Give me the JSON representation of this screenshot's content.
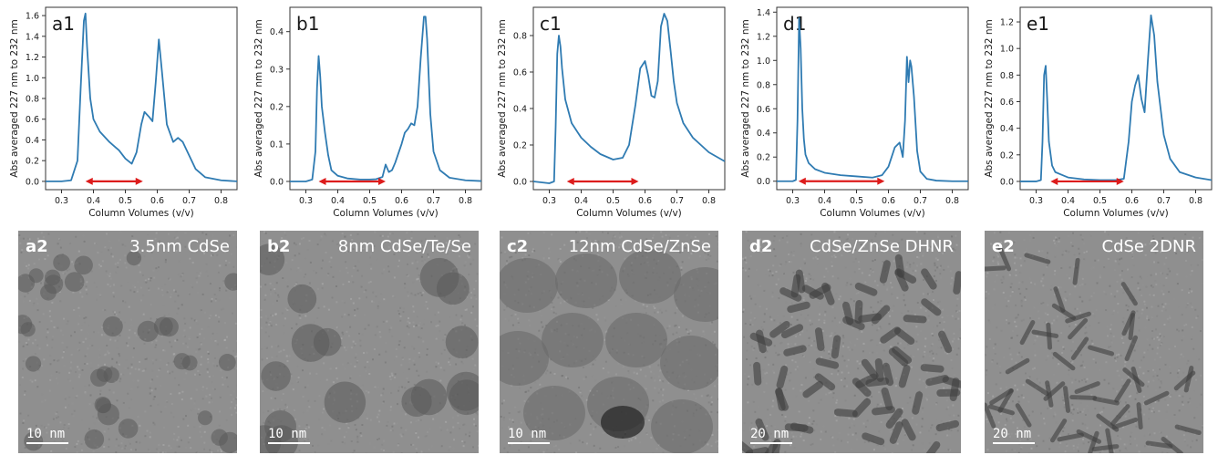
{
  "colors": {
    "line": "#2f7bb2",
    "arrow": "#dd1c1c",
    "axis": "#333333"
  },
  "chart_data": [
    {
      "type": "line",
      "label": "a1",
      "xlabel": "Column Volumes (v/v)",
      "ylabel": "Abs averaged 227 nm to 232 nm",
      "xlim": [
        0.25,
        0.85
      ],
      "ylim": [
        -0.08,
        1.68
      ],
      "xticks": [
        0.3,
        0.4,
        0.5,
        0.6,
        0.7,
        0.8
      ],
      "xtick_labels": [
        "0.3",
        "0.4",
        "0.5",
        "0.6",
        "0.7",
        "0.8"
      ],
      "yticks": [
        0.0,
        0.2,
        0.4,
        0.6,
        0.8,
        1.0,
        1.2,
        1.4,
        1.6
      ],
      "ytick_labels": [
        "0.0",
        "0.2",
        "0.4",
        "0.6",
        "0.8",
        "1.0",
        "1.2",
        "1.4",
        "1.6"
      ],
      "arrow": {
        "x": [
          0.375,
          0.555
        ],
        "y": 0.0
      },
      "series": [
        {
          "x": [
            0.25,
            0.3,
            0.33,
            0.35,
            0.36,
            0.37,
            0.375,
            0.38,
            0.39,
            0.4,
            0.42,
            0.45,
            0.48,
            0.5,
            0.52,
            0.535,
            0.55,
            0.56,
            0.575,
            0.585,
            0.595,
            0.605,
            0.615,
            0.63,
            0.65,
            0.665,
            0.68,
            0.7,
            0.72,
            0.75,
            0.8,
            0.85
          ],
          "y": [
            0.0,
            0.0,
            0.01,
            0.2,
            0.9,
            1.55,
            1.62,
            1.3,
            0.8,
            0.6,
            0.48,
            0.38,
            0.3,
            0.22,
            0.17,
            0.28,
            0.55,
            0.67,
            0.62,
            0.58,
            0.95,
            1.37,
            1.05,
            0.55,
            0.38,
            0.42,
            0.38,
            0.25,
            0.12,
            0.04,
            0.01,
            0.0
          ]
        }
      ]
    },
    {
      "type": "line",
      "label": "b1",
      "xlabel": "Column Volumes (v/v)",
      "ylabel": "Abs averaged 227 nm to 232 nm",
      "xlim": [
        0.25,
        0.85
      ],
      "ylim": [
        -0.022,
        0.465
      ],
      "xticks": [
        0.3,
        0.4,
        0.5,
        0.6,
        0.7,
        0.8
      ],
      "xtick_labels": [
        "0.3",
        "0.4",
        "0.5",
        "0.6",
        "0.7",
        "0.8"
      ],
      "yticks": [
        0.0,
        0.1,
        0.2,
        0.3,
        0.4
      ],
      "ytick_labels": [
        "0.0",
        "0.1",
        "0.2",
        "0.3",
        "0.4"
      ],
      "arrow": {
        "x": [
          0.34,
          0.55
        ],
        "y": 0.0
      },
      "series": [
        {
          "x": [
            0.25,
            0.3,
            0.32,
            0.33,
            0.335,
            0.34,
            0.345,
            0.35,
            0.36,
            0.37,
            0.38,
            0.4,
            0.43,
            0.47,
            0.5,
            0.52,
            0.54,
            0.55,
            0.56,
            0.57,
            0.58,
            0.6,
            0.61,
            0.62,
            0.63,
            0.64,
            0.65,
            0.66,
            0.67,
            0.675,
            0.68,
            0.69,
            0.7,
            0.72,
            0.75,
            0.8,
            0.85
          ],
          "y": [
            0.0,
            0.0,
            0.005,
            0.08,
            0.25,
            0.335,
            0.28,
            0.2,
            0.13,
            0.07,
            0.03,
            0.015,
            0.008,
            0.005,
            0.005,
            0.006,
            0.012,
            0.045,
            0.025,
            0.03,
            0.05,
            0.1,
            0.13,
            0.14,
            0.155,
            0.15,
            0.2,
            0.33,
            0.44,
            0.44,
            0.38,
            0.18,
            0.08,
            0.03,
            0.01,
            0.003,
            0.001
          ]
        }
      ]
    },
    {
      "type": "line",
      "label": "c1",
      "xlabel": "Column Volumes (v/v)",
      "ylabel": "Abs averaged 227 nm to 232 nm",
      "xlim": [
        0.25,
        0.85
      ],
      "ylim": [
        -0.045,
        0.955
      ],
      "xticks": [
        0.3,
        0.4,
        0.5,
        0.6,
        0.7,
        0.8
      ],
      "xtick_labels": [
        "0.3",
        "0.4",
        "0.5",
        "0.6",
        "0.7",
        "0.8"
      ],
      "yticks": [
        0.0,
        0.2,
        0.4,
        0.6,
        0.8
      ],
      "ytick_labels": [
        "0.0",
        "0.2",
        "0.4",
        "0.6",
        "0.8"
      ],
      "arrow": {
        "x": [
          0.355,
          0.58
        ],
        "y": 0.0
      },
      "series": [
        {
          "x": [
            0.25,
            0.3,
            0.315,
            0.32,
            0.325,
            0.33,
            0.335,
            0.34,
            0.35,
            0.37,
            0.4,
            0.43,
            0.46,
            0.5,
            0.53,
            0.55,
            0.57,
            0.585,
            0.6,
            0.61,
            0.62,
            0.63,
            0.64,
            0.65,
            0.66,
            0.67,
            0.68,
            0.69,
            0.7,
            0.72,
            0.75,
            0.8,
            0.85
          ],
          "y": [
            0.0,
            -0.01,
            0.0,
            0.3,
            0.7,
            0.8,
            0.74,
            0.62,
            0.45,
            0.32,
            0.24,
            0.19,
            0.15,
            0.12,
            0.13,
            0.2,
            0.42,
            0.62,
            0.66,
            0.58,
            0.47,
            0.46,
            0.55,
            0.85,
            0.92,
            0.88,
            0.72,
            0.55,
            0.43,
            0.32,
            0.24,
            0.16,
            0.11
          ]
        }
      ]
    },
    {
      "type": "line",
      "label": "d1",
      "xlabel": "Column Volumes (v/v)",
      "ylabel": "Abs averaged 227 nm to 232 nm",
      "xlim": [
        0.25,
        0.85
      ],
      "ylim": [
        -0.07,
        1.44
      ],
      "xticks": [
        0.3,
        0.4,
        0.5,
        0.6,
        0.7,
        0.8
      ],
      "xtick_labels": [
        "0.3",
        "0.4",
        "0.5",
        "0.6",
        "0.7",
        "0.8"
      ],
      "yticks": [
        0.0,
        0.2,
        0.4,
        0.6,
        0.8,
        1.0,
        1.2,
        1.4
      ],
      "ytick_labels": [
        "0.0",
        "0.2",
        "0.4",
        "0.6",
        "0.8",
        "1.0",
        "1.2",
        "1.4"
      ],
      "arrow": {
        "x": [
          0.318,
          0.588
        ],
        "y": 0.0
      },
      "series": [
        {
          "x": [
            0.25,
            0.3,
            0.31,
            0.315,
            0.32,
            0.325,
            0.33,
            0.335,
            0.34,
            0.35,
            0.37,
            0.4,
            0.45,
            0.5,
            0.55,
            0.58,
            0.6,
            0.62,
            0.635,
            0.645,
            0.652,
            0.658,
            0.663,
            0.668,
            0.672,
            0.68,
            0.69,
            0.7,
            0.72,
            0.75,
            0.8,
            0.85
          ],
          "y": [
            0.0,
            0.0,
            0.01,
            0.5,
            1.35,
            1.1,
            0.6,
            0.35,
            0.22,
            0.15,
            0.1,
            0.07,
            0.05,
            0.04,
            0.03,
            0.05,
            0.12,
            0.28,
            0.32,
            0.2,
            0.5,
            1.03,
            0.82,
            1.0,
            0.95,
            0.7,
            0.25,
            0.08,
            0.02,
            0.005,
            0.0,
            0.0
          ]
        }
      ]
    },
    {
      "type": "line",
      "label": "e1",
      "xlabel": "Column Volumes (v/v)",
      "ylabel": "Abs averaged 227 nm to 232 nm",
      "xlim": [
        0.25,
        0.85
      ],
      "ylim": [
        -0.062,
        1.31
      ],
      "xticks": [
        0.3,
        0.4,
        0.5,
        0.6,
        0.7,
        0.8
      ],
      "xtick_labels": [
        "0.3",
        "0.4",
        "0.5",
        "0.6",
        "0.7",
        "0.8"
      ],
      "yticks": [
        0.0,
        0.2,
        0.4,
        0.6,
        0.8,
        1.0,
        1.2
      ],
      "ytick_labels": [
        "0.0",
        "0.2",
        "0.4",
        "0.6",
        "0.8",
        "1.0",
        "1.2"
      ],
      "arrow": {
        "x": [
          0.345,
          0.575
        ],
        "y": 0.0
      },
      "series": [
        {
          "x": [
            0.25,
            0.3,
            0.315,
            0.32,
            0.325,
            0.33,
            0.335,
            0.34,
            0.35,
            0.36,
            0.38,
            0.4,
            0.45,
            0.5,
            0.55,
            0.575,
            0.59,
            0.6,
            0.61,
            0.62,
            0.63,
            0.64,
            0.65,
            0.66,
            0.67,
            0.68,
            0.7,
            0.72,
            0.75,
            0.8,
            0.85
          ],
          "y": [
            0.0,
            0.0,
            0.01,
            0.3,
            0.8,
            0.87,
            0.6,
            0.3,
            0.12,
            0.07,
            0.05,
            0.03,
            0.015,
            0.01,
            0.01,
            0.02,
            0.3,
            0.6,
            0.72,
            0.8,
            0.62,
            0.52,
            0.9,
            1.25,
            1.1,
            0.75,
            0.35,
            0.17,
            0.07,
            0.03,
            0.01
          ]
        }
      ]
    }
  ],
  "tem_images": [
    {
      "label": "a2",
      "title": "3.5nm CdSe",
      "scale": "10 nm"
    },
    {
      "label": "b2",
      "title": "8nm CdSe/Te/Se",
      "scale": "10 nm"
    },
    {
      "label": "c2",
      "title": "12nm CdSe/ZnSe",
      "scale": "10 nm"
    },
    {
      "label": "d2",
      "title": "CdSe/ZnSe DHNR",
      "scale": "20 nm"
    },
    {
      "label": "e2",
      "title": "CdSe 2DNR",
      "scale": "20 nm"
    }
  ]
}
